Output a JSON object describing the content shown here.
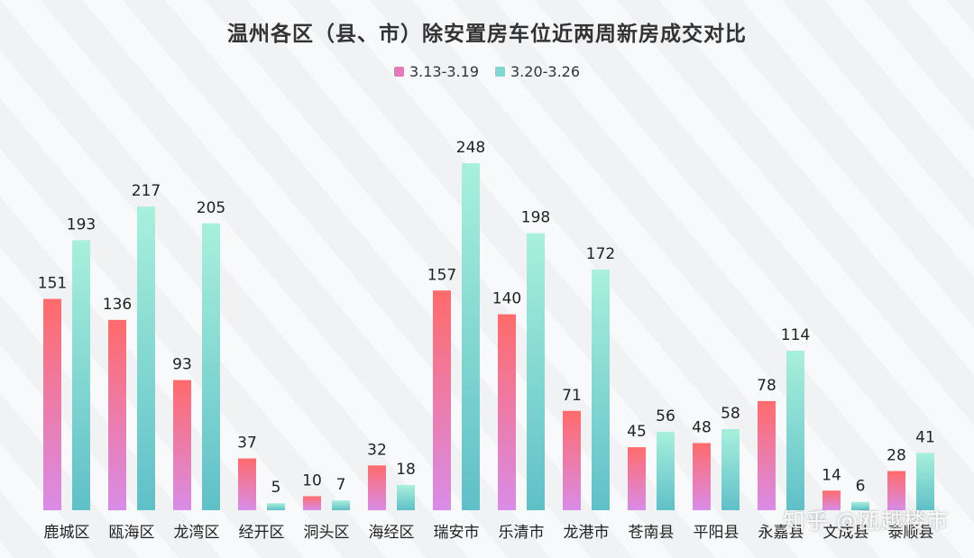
{
  "watermark": "知乎 @瓯越楼市",
  "colors": {
    "series1_top": "#ff6b6b",
    "series1_bottom": "#d98ce8",
    "series2_top": "#a8f0dc",
    "series2_bottom": "#5fc0c8",
    "legend1": "#e679b8",
    "legend2": "#7ed8d2"
  },
  "chart_data": {
    "type": "bar",
    "title": "温州各区（县、市）除安置房车位近两周新房成交对比",
    "categories": [
      "鹿城区",
      "瓯海区",
      "龙湾区",
      "经开区",
      "洞头区",
      "海经区",
      "瑞安市",
      "乐清市",
      "龙港市",
      "苍南县",
      "平阳县",
      "永嘉县",
      "文成县",
      "泰顺县"
    ],
    "series": [
      {
        "name": "3.13-3.19",
        "values": [
          151,
          136,
          93,
          37,
          10,
          32,
          157,
          140,
          71,
          45,
          48,
          78,
          14,
          28
        ]
      },
      {
        "name": "3.20-3.26",
        "values": [
          193,
          217,
          205,
          5,
          7,
          18,
          248,
          198,
          172,
          56,
          58,
          114,
          6,
          41
        ]
      }
    ],
    "ylim": [
      0,
      248
    ],
    "grid": false,
    "legend_position": "top-center",
    "data_labels": true
  }
}
